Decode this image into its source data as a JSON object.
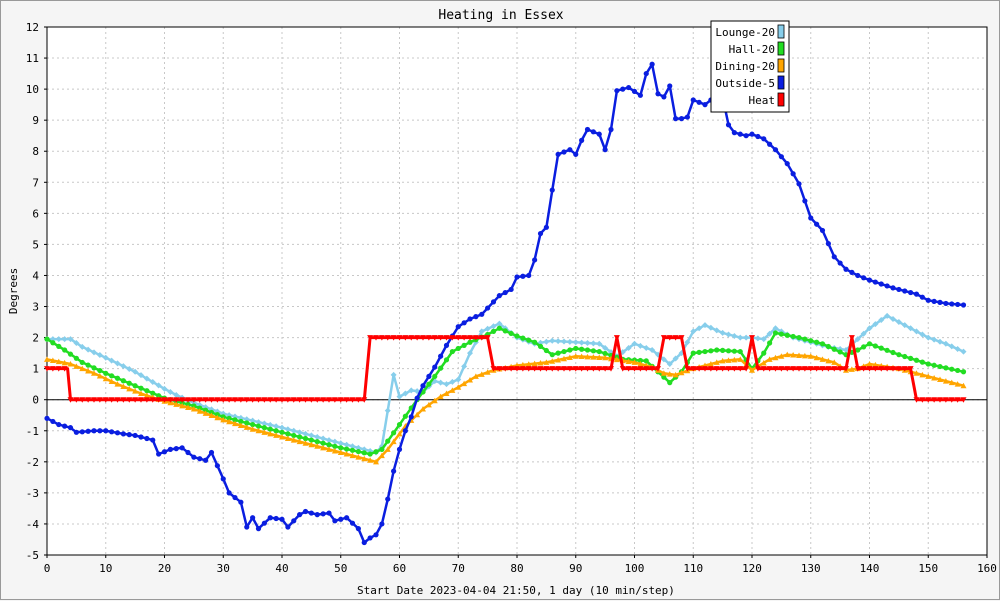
{
  "chart_data": {
    "type": "line",
    "title": "Heating in Essex",
    "xlabel": "Start Date 2023-04-04 21:50, 1 day (10 min/step)",
    "ylabel": "Degrees",
    "xlim": [
      0,
      160
    ],
    "ylim": [
      -5,
      12
    ],
    "xticks": [
      0,
      10,
      20,
      30,
      40,
      50,
      60,
      70,
      80,
      90,
      100,
      110,
      120,
      130,
      140,
      150,
      160
    ],
    "yticks": [
      -5,
      -4,
      -3,
      -2,
      -1,
      0,
      1,
      2,
      3,
      4,
      5,
      6,
      7,
      8,
      9,
      10,
      11,
      12
    ],
    "grid": true,
    "legend_position": "top-right",
    "series": [
      {
        "name": "Lounge-20",
        "color": "#87ceeb",
        "marker": "diamond",
        "points": [
          [
            0,
            1.95
          ],
          [
            4,
            1.95
          ],
          [
            6,
            1.7
          ],
          [
            10,
            1.35
          ],
          [
            15,
            0.9
          ],
          [
            20,
            0.35
          ],
          [
            22,
            0.15
          ],
          [
            25,
            -0.1
          ],
          [
            30,
            -0.45
          ],
          [
            40,
            -0.9
          ],
          [
            50,
            -1.4
          ],
          [
            56,
            -1.7
          ],
          [
            57,
            -1.5
          ],
          [
            59,
            0.8
          ],
          [
            60,
            0.1
          ],
          [
            62,
            0.3
          ],
          [
            64,
            0.25
          ],
          [
            66,
            0.6
          ],
          [
            68,
            0.5
          ],
          [
            70,
            0.65
          ],
          [
            72,
            1.5
          ],
          [
            74,
            2.2
          ],
          [
            77,
            2.45
          ],
          [
            80,
            2.0
          ],
          [
            83,
            1.8
          ],
          [
            86,
            1.9
          ],
          [
            90,
            1.85
          ],
          [
            94,
            1.8
          ],
          [
            97,
            1.4
          ],
          [
            100,
            1.8
          ],
          [
            103,
            1.6
          ],
          [
            106,
            1.15
          ],
          [
            108,
            1.5
          ],
          [
            110,
            2.2
          ],
          [
            112,
            2.4
          ],
          [
            115,
            2.15
          ],
          [
            118,
            2.0
          ],
          [
            120,
            2.0
          ],
          [
            122,
            1.95
          ],
          [
            124,
            2.3
          ],
          [
            127,
            2.0
          ],
          [
            130,
            1.85
          ],
          [
            133,
            1.7
          ],
          [
            136,
            1.6
          ],
          [
            138,
            1.95
          ],
          [
            140,
            2.3
          ],
          [
            143,
            2.7
          ],
          [
            146,
            2.4
          ],
          [
            150,
            2.0
          ],
          [
            153,
            1.8
          ],
          [
            156,
            1.55
          ]
        ]
      },
      {
        "name": "Hall-20",
        "color": "#22dd22",
        "marker": "circle",
        "points": [
          [
            0,
            1.95
          ],
          [
            3,
            1.6
          ],
          [
            6,
            1.2
          ],
          [
            10,
            0.85
          ],
          [
            15,
            0.45
          ],
          [
            20,
            0.05
          ],
          [
            25,
            -0.2
          ],
          [
            30,
            -0.55
          ],
          [
            40,
            -1.05
          ],
          [
            50,
            -1.55
          ],
          [
            55,
            -1.75
          ],
          [
            57,
            -1.6
          ],
          [
            60,
            -0.8
          ],
          [
            63,
            0.0
          ],
          [
            66,
            0.75
          ],
          [
            69,
            1.55
          ],
          [
            72,
            1.85
          ],
          [
            75,
            2.1
          ],
          [
            77,
            2.3
          ],
          [
            80,
            2.05
          ],
          [
            83,
            1.85
          ],
          [
            86,
            1.45
          ],
          [
            90,
            1.65
          ],
          [
            94,
            1.55
          ],
          [
            98,
            1.3
          ],
          [
            102,
            1.25
          ],
          [
            104,
            0.9
          ],
          [
            106,
            0.55
          ],
          [
            108,
            0.9
          ],
          [
            110,
            1.5
          ],
          [
            114,
            1.6
          ],
          [
            118,
            1.55
          ],
          [
            120,
            1.0
          ],
          [
            122,
            1.5
          ],
          [
            124,
            2.15
          ],
          [
            128,
            2.0
          ],
          [
            132,
            1.8
          ],
          [
            136,
            1.45
          ],
          [
            138,
            1.6
          ],
          [
            140,
            1.8
          ],
          [
            145,
            1.45
          ],
          [
            150,
            1.15
          ],
          [
            156,
            0.9
          ]
        ]
      },
      {
        "name": "Dining-20",
        "color": "#ffa500",
        "marker": "triangle",
        "points": [
          [
            0,
            1.3
          ],
          [
            4,
            1.15
          ],
          [
            8,
            0.85
          ],
          [
            12,
            0.5
          ],
          [
            16,
            0.2
          ],
          [
            20,
            -0.05
          ],
          [
            25,
            -0.3
          ],
          [
            30,
            -0.65
          ],
          [
            35,
            -0.95
          ],
          [
            40,
            -1.2
          ],
          [
            45,
            -1.45
          ],
          [
            50,
            -1.7
          ],
          [
            54,
            -1.9
          ],
          [
            56,
            -2.0
          ],
          [
            58,
            -1.6
          ],
          [
            61,
            -0.85
          ],
          [
            64,
            -0.3
          ],
          [
            67,
            0.1
          ],
          [
            70,
            0.4
          ],
          [
            73,
            0.75
          ],
          [
            76,
            0.95
          ],
          [
            80,
            1.1
          ],
          [
            85,
            1.2
          ],
          [
            90,
            1.4
          ],
          [
            95,
            1.35
          ],
          [
            100,
            1.2
          ],
          [
            103,
            1.05
          ],
          [
            105,
            0.85
          ],
          [
            107,
            0.8
          ],
          [
            110,
            1.0
          ],
          [
            115,
            1.25
          ],
          [
            118,
            1.3
          ],
          [
            120,
            0.95
          ],
          [
            123,
            1.3
          ],
          [
            126,
            1.45
          ],
          [
            130,
            1.4
          ],
          [
            134,
            1.2
          ],
          [
            136,
            0.95
          ],
          [
            138,
            1.0
          ],
          [
            140,
            1.15
          ],
          [
            145,
            1.0
          ],
          [
            150,
            0.75
          ],
          [
            156,
            0.45
          ]
        ]
      },
      {
        "name": "Outside-5",
        "color": "#0a1ee0",
        "marker": "circle",
        "points": [
          [
            0,
            -0.6
          ],
          [
            2,
            -0.8
          ],
          [
            4,
            -0.9
          ],
          [
            5,
            -1.05
          ],
          [
            8,
            -1.0
          ],
          [
            10,
            -1.0
          ],
          [
            13,
            -1.1
          ],
          [
            15,
            -1.15
          ],
          [
            18,
            -1.3
          ],
          [
            19,
            -1.75
          ],
          [
            21,
            -1.6
          ],
          [
            23,
            -1.55
          ],
          [
            25,
            -1.85
          ],
          [
            27,
            -1.95
          ],
          [
            28,
            -1.7
          ],
          [
            30,
            -2.55
          ],
          [
            31,
            -3.0
          ],
          [
            33,
            -3.3
          ],
          [
            34,
            -4.1
          ],
          [
            35,
            -3.8
          ],
          [
            36,
            -4.15
          ],
          [
            38,
            -3.8
          ],
          [
            40,
            -3.85
          ],
          [
            41,
            -4.1
          ],
          [
            43,
            -3.7
          ],
          [
            44,
            -3.6
          ],
          [
            46,
            -3.7
          ],
          [
            48,
            -3.65
          ],
          [
            49,
            -3.9
          ],
          [
            51,
            -3.8
          ],
          [
            53,
            -4.15
          ],
          [
            54,
            -4.6
          ],
          [
            55,
            -4.45
          ],
          [
            56,
            -4.35
          ],
          [
            57,
            -4.0
          ],
          [
            58,
            -3.2
          ],
          [
            59,
            -2.3
          ],
          [
            60,
            -1.6
          ],
          [
            61,
            -1.0
          ],
          [
            62,
            -0.55
          ],
          [
            63,
            0.05
          ],
          [
            64,
            0.45
          ],
          [
            66,
            1.05
          ],
          [
            68,
            1.75
          ],
          [
            70,
            2.35
          ],
          [
            72,
            2.6
          ],
          [
            74,
            2.75
          ],
          [
            75,
            2.95
          ],
          [
            77,
            3.35
          ],
          [
            79,
            3.55
          ],
          [
            80,
            3.95
          ],
          [
            82,
            4.0
          ],
          [
            83,
            4.5
          ],
          [
            84,
            5.35
          ],
          [
            85,
            5.55
          ],
          [
            86,
            6.75
          ],
          [
            87,
            7.9
          ],
          [
            89,
            8.05
          ],
          [
            90,
            7.9
          ],
          [
            91,
            8.35
          ],
          [
            92,
            8.7
          ],
          [
            94,
            8.55
          ],
          [
            95,
            8.05
          ],
          [
            96,
            8.7
          ],
          [
            97,
            9.95
          ],
          [
            99,
            10.05
          ],
          [
            101,
            9.8
          ],
          [
            102,
            10.5
          ],
          [
            103,
            10.8
          ],
          [
            104,
            9.85
          ],
          [
            105,
            9.75
          ],
          [
            106,
            10.1
          ],
          [
            107,
            9.05
          ],
          [
            108,
            9.05
          ],
          [
            109,
            9.1
          ],
          [
            110,
            9.65
          ],
          [
            112,
            9.5
          ],
          [
            113,
            9.65
          ],
          [
            114,
            9.35
          ],
          [
            115,
            9.75
          ],
          [
            116,
            8.85
          ],
          [
            117,
            8.6
          ],
          [
            119,
            8.5
          ],
          [
            120,
            8.55
          ],
          [
            122,
            8.4
          ],
          [
            124,
            8.05
          ],
          [
            126,
            7.6
          ],
          [
            128,
            6.95
          ],
          [
            130,
            5.85
          ],
          [
            132,
            5.45
          ],
          [
            134,
            4.6
          ],
          [
            136,
            4.2
          ],
          [
            138,
            4.0
          ],
          [
            140,
            3.85
          ],
          [
            144,
            3.6
          ],
          [
            148,
            3.4
          ],
          [
            150,
            3.2
          ],
          [
            153,
            3.1
          ],
          [
            156,
            3.05
          ]
        ]
      },
      {
        "name": "Heat",
        "color": "#ff0000",
        "marker": "triangle-down",
        "points": [
          [
            0,
            1
          ],
          [
            3.5,
            1
          ],
          [
            4,
            0
          ],
          [
            54,
            0
          ],
          [
            55,
            2
          ],
          [
            75,
            2
          ],
          [
            76,
            1
          ],
          [
            96,
            1
          ],
          [
            97,
            2
          ],
          [
            98,
            1
          ],
          [
            104,
            1
          ],
          [
            105,
            2
          ],
          [
            108,
            2
          ],
          [
            109,
            1
          ],
          [
            119,
            1
          ],
          [
            120,
            2
          ],
          [
            121,
            1
          ],
          [
            136,
            1
          ],
          [
            137,
            2
          ],
          [
            138,
            1
          ],
          [
            147,
            1
          ],
          [
            148,
            0
          ],
          [
            156,
            0
          ]
        ]
      }
    ]
  }
}
